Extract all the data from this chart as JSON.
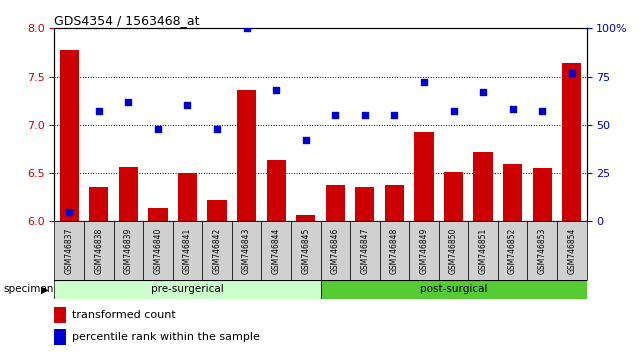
{
  "title": "GDS4354 / 1563468_at",
  "samples": [
    "GSM746837",
    "GSM746838",
    "GSM746839",
    "GSM746840",
    "GSM746841",
    "GSM746842",
    "GSM746843",
    "GSM746844",
    "GSM746845",
    "GSM746846",
    "GSM746847",
    "GSM746848",
    "GSM746849",
    "GSM746850",
    "GSM746851",
    "GSM746852",
    "GSM746853",
    "GSM746854"
  ],
  "bar_values": [
    7.78,
    6.36,
    6.56,
    6.14,
    6.5,
    6.22,
    7.36,
    6.64,
    6.06,
    6.38,
    6.36,
    6.38,
    6.93,
    6.51,
    6.72,
    6.59,
    6.55,
    7.64
  ],
  "percentile_values": [
    5.0,
    57.0,
    62.0,
    48.0,
    60.0,
    48.0,
    100.0,
    68.0,
    42.0,
    55.0,
    55.0,
    55.0,
    72.0,
    57.0,
    67.0,
    58.0,
    57.0,
    77.0
  ],
  "ylim_left": [
    6.0,
    8.0
  ],
  "ylim_right": [
    0.0,
    100.0
  ],
  "yticks_left": [
    6.0,
    6.5,
    7.0,
    7.5,
    8.0
  ],
  "yticks_right": [
    0,
    25,
    50,
    75,
    100
  ],
  "ytick_labels_right": [
    "0",
    "25",
    "50",
    "75",
    "100%"
  ],
  "bar_color": "#cc0000",
  "percentile_color": "#0000cc",
  "pre_surgical_count": 9,
  "post_surgical_count": 9,
  "pre_surgical_label": "pre-surgerical",
  "post_surgical_label": "post-surgical",
  "pre_color": "#ccffcc",
  "post_color": "#55cc33",
  "specimen_label": "specimen",
  "legend_bar_label": "transformed count",
  "legend_pct_label": "percentile rank within the sample",
  "background_color": "#ffffff",
  "tick_label_color_left": "#cc0000",
  "tick_label_color_right": "#0000cc",
  "xtick_box_color": "#d0d0d0",
  "dotted_yticks": [
    6.5,
    7.0,
    7.5
  ]
}
